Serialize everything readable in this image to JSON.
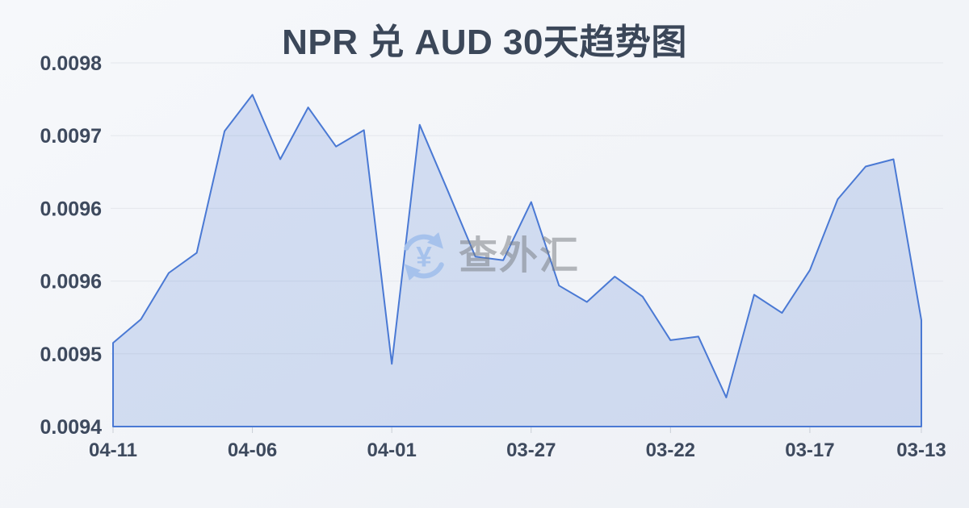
{
  "chart_data": {
    "type": "area",
    "title": "NPR 兑 AUD 30天趋势图",
    "x": [
      "04-11",
      "04-10",
      "04-09",
      "04-08",
      "04-07",
      "04-06",
      "04-05",
      "04-04",
      "04-03",
      "04-02",
      "04-01",
      "03-31",
      "03-30",
      "03-29",
      "03-28",
      "03-27",
      "03-26",
      "03-25",
      "03-24",
      "03-23",
      "03-22",
      "03-21",
      "03-20",
      "03-19",
      "03-18",
      "03-17",
      "03-16",
      "03-15",
      "03-14",
      "03-13"
    ],
    "values": [
      0.009492,
      0.009518,
      0.009569,
      0.009591,
      0.009725,
      0.009765,
      0.009694,
      0.009751,
      0.009708,
      0.009726,
      0.009469,
      0.009732,
      0.00966,
      0.009587,
      0.009583,
      0.009647,
      0.009555,
      0.009537,
      0.009565,
      0.009543,
      0.009495,
      0.009499,
      0.009432,
      0.009545,
      0.009525,
      0.009572,
      0.00965,
      0.009686,
      0.009694,
      0.009517
    ],
    "x_tick_labels": [
      "04-11",
      "04-06",
      "04-01",
      "03-27",
      "03-22",
      "03-17",
      "03-13"
    ],
    "y_ticks": [
      0.0094,
      0.00948,
      0.00956,
      0.00964,
      0.00972,
      0.0098
    ],
    "y_tick_labels": [
      "0.0094",
      "0.0095",
      "0.0096",
      "0.0096",
      "0.0097",
      "0.0098"
    ],
    "ylim": [
      0.0094,
      0.0098
    ],
    "xlabel": "",
    "ylabel": "",
    "grid": true,
    "legend": "none",
    "line_color": "#4a79d4",
    "fill_color": "rgba(74,121,212,0.20)",
    "grid_color": "#e4e7ec",
    "tick_color": "#c9ced6",
    "label_color": "#3e4a5e",
    "title_color": "#3b4759"
  },
  "watermark": {
    "text": "查外汇",
    "icon": "currency-refresh-icon",
    "icon_color": "#a6c2ec"
  }
}
